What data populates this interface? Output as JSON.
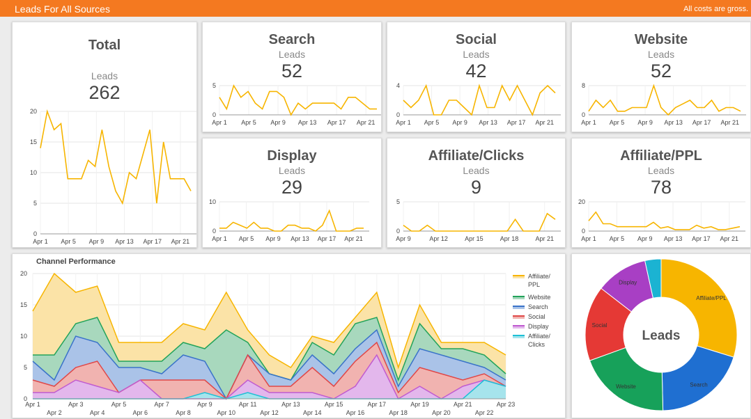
{
  "header": {
    "title": "Leads For All Sources",
    "note": "All costs are gross."
  },
  "colors": {
    "line": "#f7b500",
    "header": "#f47920"
  },
  "cards": [
    {
      "title": "Total",
      "sub": "Leads",
      "value": "262"
    },
    {
      "title": "Search",
      "sub": "Leads",
      "value": "52"
    },
    {
      "title": "Social",
      "sub": "Leads",
      "value": "42"
    },
    {
      "title": "Website",
      "sub": "Leads",
      "value": "52"
    },
    {
      "title": "Display",
      "sub": "Leads",
      "value": "29"
    },
    {
      "title": "Affiliate/Clicks",
      "sub": "Leads",
      "value": "9"
    },
    {
      "title": "Affiliate/PPL",
      "sub": "Leads",
      "value": "78"
    }
  ],
  "chart_data": [
    {
      "type": "line",
      "title": "Total",
      "ylim": [
        0,
        20
      ],
      "yticks": [
        0,
        5,
        10,
        15,
        20
      ],
      "xticks": [
        "Apr 1",
        "Apr 5",
        "Apr 9",
        "Apr 13",
        "Apr 17",
        "Apr 21"
      ],
      "values": [
        14,
        20,
        17,
        18,
        9,
        9,
        9,
        12,
        11,
        17,
        11,
        7,
        5,
        10,
        9,
        13,
        17,
        5,
        15,
        9,
        9,
        9,
        7
      ]
    },
    {
      "type": "line",
      "title": "Search",
      "ylim": [
        0,
        5
      ],
      "yticks": [
        0,
        5
      ],
      "xticks": [
        "Apr 1",
        "Apr 5",
        "Apr 9",
        "Apr 13",
        "Apr 17",
        "Apr 21"
      ],
      "values": [
        3,
        1,
        5,
        3,
        4,
        2,
        1,
        4,
        4,
        3,
        0,
        2,
        1,
        2,
        2,
        2,
        2,
        1,
        3,
        3,
        2,
        1,
        1
      ]
    },
    {
      "type": "line",
      "title": "Social",
      "ylim": [
        0,
        4
      ],
      "yticks": [
        0,
        4
      ],
      "xticks": [
        "Apr 1",
        "Apr 5",
        "Apr 9",
        "Apr 13",
        "Apr 17",
        "Apr 21"
      ],
      "values": [
        2,
        1,
        2,
        4,
        0,
        0,
        2,
        2,
        1,
        0,
        4,
        1,
        1,
        4,
        2,
        4,
        2,
        0,
        3,
        4,
        3
      ]
    },
    {
      "type": "line",
      "title": "Website",
      "ylim": [
        0,
        8
      ],
      "yticks": [
        0,
        8
      ],
      "xticks": [
        "Apr 1",
        "Apr 5",
        "Apr 9",
        "Apr 13",
        "Apr 17",
        "Apr 21"
      ],
      "values": [
        1,
        4,
        2,
        4,
        1,
        1,
        2,
        2,
        2,
        8,
        2,
        0,
        2,
        3,
        4,
        2,
        2,
        4,
        1,
        2,
        2,
        1
      ]
    },
    {
      "type": "line",
      "title": "Display",
      "ylim": [
        0,
        10
      ],
      "yticks": [
        0,
        10
      ],
      "xticks": [
        "Apr 1",
        "Apr 5",
        "Apr 9",
        "Apr 13",
        "Apr 17",
        "Apr 21"
      ],
      "values": [
        1,
        1,
        3,
        2,
        1,
        3,
        1,
        1,
        0,
        0,
        2,
        2,
        1,
        1,
        0,
        2,
        7,
        0,
        0,
        0,
        1,
        1
      ]
    },
    {
      "type": "line",
      "title": "Affiliate/Clicks",
      "ylim": [
        0,
        5
      ],
      "yticks": [
        0,
        5
      ],
      "xticks": [
        "Apr 9",
        "Apr 12",
        "Apr 15",
        "Apr 18",
        "Apr 21"
      ],
      "values": [
        1,
        0,
        0,
        1,
        0,
        0,
        0,
        0,
        0,
        0,
        0,
        0,
        0,
        0,
        2,
        0,
        0,
        0,
        3,
        2
      ]
    },
    {
      "type": "line",
      "title": "Affiliate/PPL",
      "ylim": [
        0,
        20
      ],
      "yticks": [
        0,
        20
      ],
      "xticks": [
        "Apr 1",
        "Apr 5",
        "Apr 9",
        "Apr 13",
        "Apr 17",
        "Apr 21"
      ],
      "values": [
        7,
        13,
        5,
        5,
        3,
        3,
        3,
        3,
        3,
        6,
        2,
        3,
        1,
        1,
        1,
        4,
        2,
        3,
        1,
        1,
        2,
        3
      ]
    },
    {
      "type": "area",
      "title": "Channel Performance",
      "ylim": [
        0,
        20
      ],
      "yticks": [
        0,
        5,
        10,
        15,
        20
      ],
      "xticks_top": [
        "Apr 1",
        "Apr 3",
        "Apr 5",
        "Apr 7",
        "Apr 9",
        "Apr 11",
        "Apr 13",
        "Apr 15",
        "Apr 17",
        "Apr 19",
        "Apr 21",
        "Apr 23"
      ],
      "xticks_bottom": [
        "Apr 2",
        "Apr 4",
        "Apr 6",
        "Apr 8",
        "Apr 10",
        "Apr 12",
        "Apr 14",
        "Apr 16",
        "Apr 18",
        "Apr 20",
        "Apr 22"
      ],
      "legend_position": "right",
      "series": [
        {
          "name": "Affiliate/ PPL",
          "color": "#f7b500",
          "fill": "#fbe3a7",
          "cumulative": [
            14,
            20,
            17,
            18,
            9,
            9,
            9,
            12,
            11,
            17,
            11,
            7,
            5,
            10,
            9,
            13,
            17,
            5,
            15,
            9,
            9,
            9,
            7
          ]
        },
        {
          "name": "Website",
          "color": "#22a35a",
          "fill": "#a8d8bd",
          "cumulative": [
            7,
            7,
            12,
            13,
            6,
            6,
            6,
            9,
            8,
            11,
            9,
            4,
            3,
            9,
            7,
            12,
            13,
            3,
            12,
            8,
            8,
            7,
            4
          ]
        },
        {
          "name": "Search",
          "color": "#3a73c9",
          "fill": "#aac3e8",
          "cumulative": [
            6,
            3,
            10,
            9,
            5,
            5,
            4,
            7,
            6,
            0,
            7,
            4,
            3,
            7,
            4,
            8,
            11,
            2,
            8,
            7,
            6,
            5,
            3
          ]
        },
        {
          "name": "Social",
          "color": "#e04848",
          "fill": "#f1b3b0",
          "cumulative": [
            3,
            2,
            5,
            6,
            1,
            3,
            3,
            3,
            3,
            0,
            7,
            2,
            2,
            5,
            2,
            6,
            9,
            1,
            5,
            4,
            3,
            4,
            2
          ]
        },
        {
          "name": "Display",
          "color": "#c05bd0",
          "fill": "#e3b7ec",
          "cumulative": [
            1,
            1,
            3,
            2,
            1,
            3,
            0,
            0,
            0,
            0,
            3,
            1,
            1,
            1,
            0,
            2,
            7,
            0,
            2,
            0,
            2,
            3,
            2
          ]
        },
        {
          "name": "Affiliate/ Clicks",
          "color": "#1ec0d6",
          "fill": "#a6e4ec",
          "cumulative": [
            0,
            0,
            0,
            0,
            0,
            0,
            0,
            0,
            1,
            0,
            1,
            0,
            0,
            0,
            0,
            0,
            0,
            0,
            0,
            0,
            0,
            3,
            2
          ]
        }
      ]
    },
    {
      "type": "pie",
      "title": "Leads",
      "center_label": "Leads",
      "slices": [
        {
          "label": "Affiliate/PPL",
          "value": 78,
          "color": "#f7b500"
        },
        {
          "label": "Search",
          "value": 52,
          "color": "#1f6fd1"
        },
        {
          "label": "Website",
          "value": 52,
          "color": "#17a15a"
        },
        {
          "label": "Social",
          "value": 42,
          "color": "#e53935"
        },
        {
          "label": "Display",
          "value": 29,
          "color": "#a83fc4"
        },
        {
          "label": "",
          "value": 9,
          "color": "#1bb3d2"
        }
      ]
    }
  ]
}
